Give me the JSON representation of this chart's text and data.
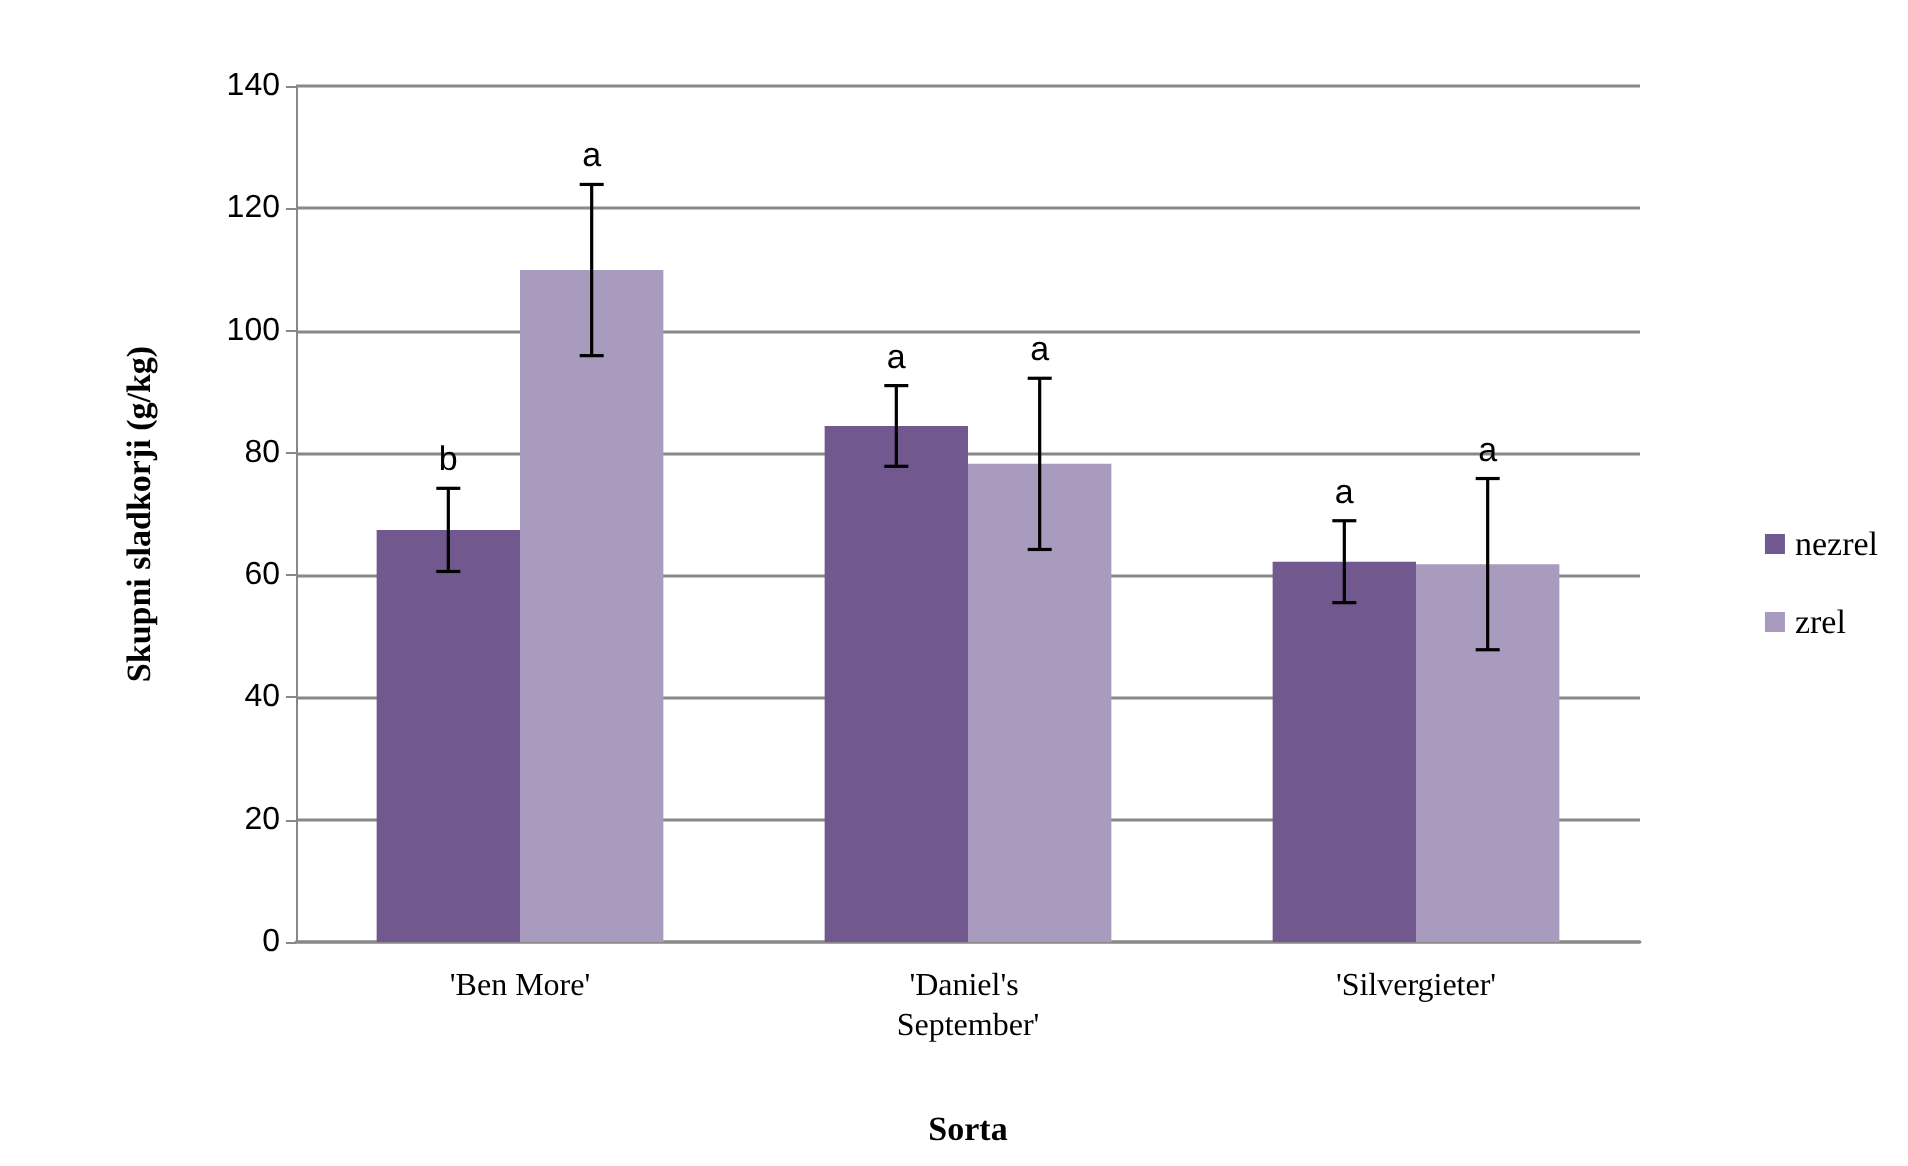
{
  "chart_data": {
    "type": "bar",
    "xlabel": "Sorta",
    "ylabel": "Skupni sladkorji (g/kg)",
    "categories": [
      "'Ben More'",
      "'Daniel's September'",
      "'Silvergieter'"
    ],
    "series": [
      {
        "name": "nezrel",
        "color": "#71598f",
        "values": [
          67.4,
          84.4,
          62.2
        ],
        "errors": [
          6.8,
          6.6,
          6.7
        ]
      },
      {
        "name": "zrel",
        "color": "#a99bbd",
        "values": [
          109.9,
          78.2,
          61.8
        ],
        "errors": [
          14,
          14,
          14
        ]
      }
    ],
    "annotations": [
      "b",
      "a",
      "a",
      "a",
      "a",
      "a"
    ],
    "ylim": [
      0,
      140
    ],
    "yticks": [
      0,
      20,
      40,
      60,
      80,
      100,
      120,
      140
    ],
    "grid": "y",
    "legend": "right"
  }
}
